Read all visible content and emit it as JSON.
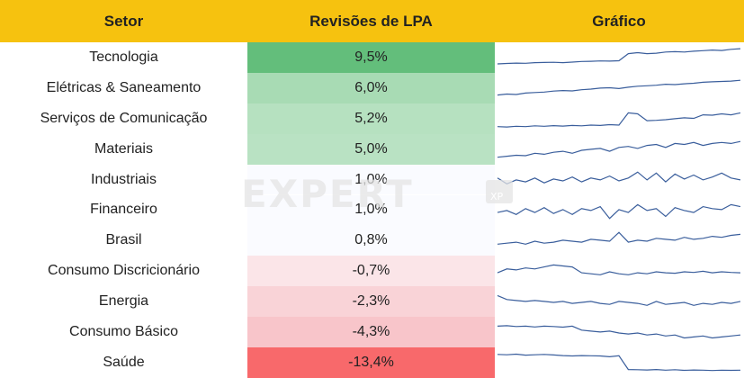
{
  "header": {
    "col_sector": "Setor",
    "col_revisions": "Revisões de LPA",
    "col_chart": "Gráfico"
  },
  "watermark": {
    "word": "EXPERT",
    "sub": "XP"
  },
  "chart_data": {
    "type": "table",
    "columns": [
      "Setor",
      "Revisões de LPA",
      "Gráfico"
    ],
    "rows": [
      {
        "sector": "Tecnologia",
        "value_label": "9,5%",
        "value": 9.5,
        "color": "#63be7b",
        "spark": [
          0.18,
          0.2,
          0.22,
          0.21,
          0.24,
          0.25,
          0.26,
          0.24,
          0.27,
          0.3,
          0.31,
          0.33,
          0.32,
          0.34,
          0.7,
          0.75,
          0.7,
          0.72,
          0.78,
          0.8,
          0.78,
          0.82,
          0.85,
          0.88,
          0.86,
          0.92,
          0.95
        ]
      },
      {
        "sector": "Elétricas & Saneamento",
        "value_label": "6,0%",
        "value": 6.0,
        "color": "#a8dbb4",
        "spark": [
          0.15,
          0.2,
          0.18,
          0.25,
          0.28,
          0.3,
          0.35,
          0.38,
          0.36,
          0.42,
          0.45,
          0.5,
          0.52,
          0.48,
          0.55,
          0.6,
          0.62,
          0.65,
          0.7,
          0.68,
          0.72,
          0.75,
          0.8,
          0.82,
          0.84,
          0.86,
          0.9
        ]
      },
      {
        "sector": "Serviços de Comunicação",
        "value_label": "5,2%",
        "value": 5.2,
        "color": "#b6e1c0",
        "spark": [
          0.1,
          0.08,
          0.12,
          0.1,
          0.14,
          0.12,
          0.15,
          0.13,
          0.16,
          0.14,
          0.18,
          0.16,
          0.2,
          0.18,
          0.8,
          0.75,
          0.4,
          0.42,
          0.45,
          0.5,
          0.55,
          0.52,
          0.7,
          0.68,
          0.75,
          0.7,
          0.8
        ]
      },
      {
        "sector": "Materiais",
        "value_label": "5,0%",
        "value": 5.0,
        "color": "#b9e2c3",
        "spark": [
          0.1,
          0.15,
          0.2,
          0.18,
          0.3,
          0.25,
          0.35,
          0.4,
          0.3,
          0.45,
          0.5,
          0.55,
          0.4,
          0.6,
          0.65,
          0.55,
          0.7,
          0.75,
          0.6,
          0.8,
          0.75,
          0.85,
          0.7,
          0.8,
          0.85,
          0.8,
          0.9
        ]
      },
      {
        "sector": "Industriais",
        "value_label": "1,0%",
        "value": 1.0,
        "color": "#fafbff",
        "spark": [
          0.6,
          0.3,
          0.5,
          0.4,
          0.6,
          0.35,
          0.55,
          0.45,
          0.65,
          0.4,
          0.6,
          0.5,
          0.7,
          0.45,
          0.6,
          0.9,
          0.5,
          0.85,
          0.4,
          0.8,
          0.55,
          0.75,
          0.5,
          0.65,
          0.85,
          0.6,
          0.5
        ]
      },
      {
        "sector": "Financeiro",
        "value_label": "1,0%",
        "value": 1.0,
        "color": "#fafbff",
        "spark": [
          0.4,
          0.5,
          0.3,
          0.6,
          0.4,
          0.65,
          0.35,
          0.55,
          0.3,
          0.6,
          0.5,
          0.7,
          0.1,
          0.55,
          0.4,
          0.8,
          0.5,
          0.6,
          0.2,
          0.65,
          0.5,
          0.4,
          0.7,
          0.6,
          0.55,
          0.8,
          0.7
        ]
      },
      {
        "sector": "Brasil",
        "value_label": "0,8%",
        "value": 0.8,
        "color": "#fafbff",
        "spark": [
          0.3,
          0.35,
          0.4,
          0.3,
          0.45,
          0.35,
          0.4,
          0.5,
          0.45,
          0.4,
          0.55,
          0.5,
          0.45,
          0.9,
          0.4,
          0.5,
          0.45,
          0.6,
          0.55,
          0.5,
          0.65,
          0.55,
          0.6,
          0.7,
          0.65,
          0.75,
          0.8
        ]
      },
      {
        "sector": "Consumo Discricionário",
        "value_label": "-0,7%",
        "value": -0.7,
        "color": "#fbe5e8",
        "spark": [
          0.4,
          0.6,
          0.55,
          0.65,
          0.6,
          0.7,
          0.8,
          0.75,
          0.7,
          0.4,
          0.35,
          0.3,
          0.45,
          0.35,
          0.3,
          0.4,
          0.35,
          0.45,
          0.4,
          0.38,
          0.45,
          0.42,
          0.48,
          0.4,
          0.45,
          0.42,
          0.4
        ]
      },
      {
        "sector": "Energia",
        "value_label": "-2,3%",
        "value": -2.3,
        "color": "#f9d3d7",
        "spark": [
          0.8,
          0.6,
          0.55,
          0.5,
          0.55,
          0.5,
          0.45,
          0.5,
          0.4,
          0.45,
          0.5,
          0.4,
          0.35,
          0.5,
          0.45,
          0.4,
          0.3,
          0.5,
          0.35,
          0.4,
          0.45,
          0.3,
          0.4,
          0.35,
          0.45,
          0.4,
          0.5
        ]
      },
      {
        "sector": "Consumo Básico",
        "value_label": "-4,3%",
        "value": -4.3,
        "color": "#f8c5ca",
        "spark": [
          0.8,
          0.82,
          0.78,
          0.8,
          0.76,
          0.8,
          0.78,
          0.75,
          0.8,
          0.6,
          0.55,
          0.5,
          0.55,
          0.45,
          0.4,
          0.45,
          0.35,
          0.4,
          0.3,
          0.35,
          0.2,
          0.25,
          0.3,
          0.2,
          0.25,
          0.3,
          0.35
        ]
      },
      {
        "sector": "Saúde",
        "value_label": "-13,4%",
        "value": -13.4,
        "color": "#f8696b",
        "spark": [
          0.92,
          0.9,
          0.93,
          0.88,
          0.9,
          0.92,
          0.89,
          0.86,
          0.84,
          0.86,
          0.85,
          0.84,
          0.8,
          0.85,
          0.15,
          0.14,
          0.13,
          0.15,
          0.12,
          0.14,
          0.11,
          0.13,
          0.12,
          0.1,
          0.12,
          0.11,
          0.12
        ]
      }
    ]
  }
}
